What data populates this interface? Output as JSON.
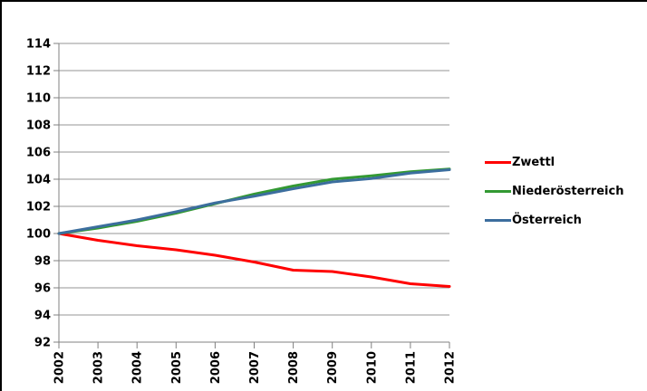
{
  "chart_data": {
    "type": "line",
    "title": "",
    "xlabel": "",
    "ylabel": "",
    "x": [
      2002,
      2003,
      2004,
      2005,
      2006,
      2007,
      2008,
      2009,
      2010,
      2011,
      2012
    ],
    "series": [
      {
        "name": "Zwettl",
        "color": "#ff0000",
        "values": [
          100.0,
          99.5,
          99.1,
          98.8,
          98.4,
          97.9,
          97.3,
          97.2,
          96.8,
          96.3,
          96.1
        ]
      },
      {
        "name": "Niederösterreich",
        "color": "#339933",
        "values": [
          100.0,
          100.4,
          100.9,
          101.5,
          102.2,
          102.9,
          103.5,
          104.0,
          104.25,
          104.55,
          104.75
        ]
      },
      {
        "name": "Österreich",
        "color": "#3c6e9e",
        "values": [
          100.0,
          100.5,
          101.0,
          101.6,
          102.25,
          102.75,
          103.3,
          103.8,
          104.05,
          104.45,
          104.7
        ]
      }
    ],
    "ylim": [
      92,
      114
    ],
    "ytick_step": 2,
    "grid": true,
    "legend_position": "right"
  },
  "colors": {
    "background": "#ffffff",
    "frame_border": "#000000",
    "gridline": "#969696",
    "axis": "#808080",
    "tick_label": "#000000"
  },
  "legend": {
    "items": [
      "Zwettl",
      "Niederösterreich",
      "Österreich"
    ]
  }
}
